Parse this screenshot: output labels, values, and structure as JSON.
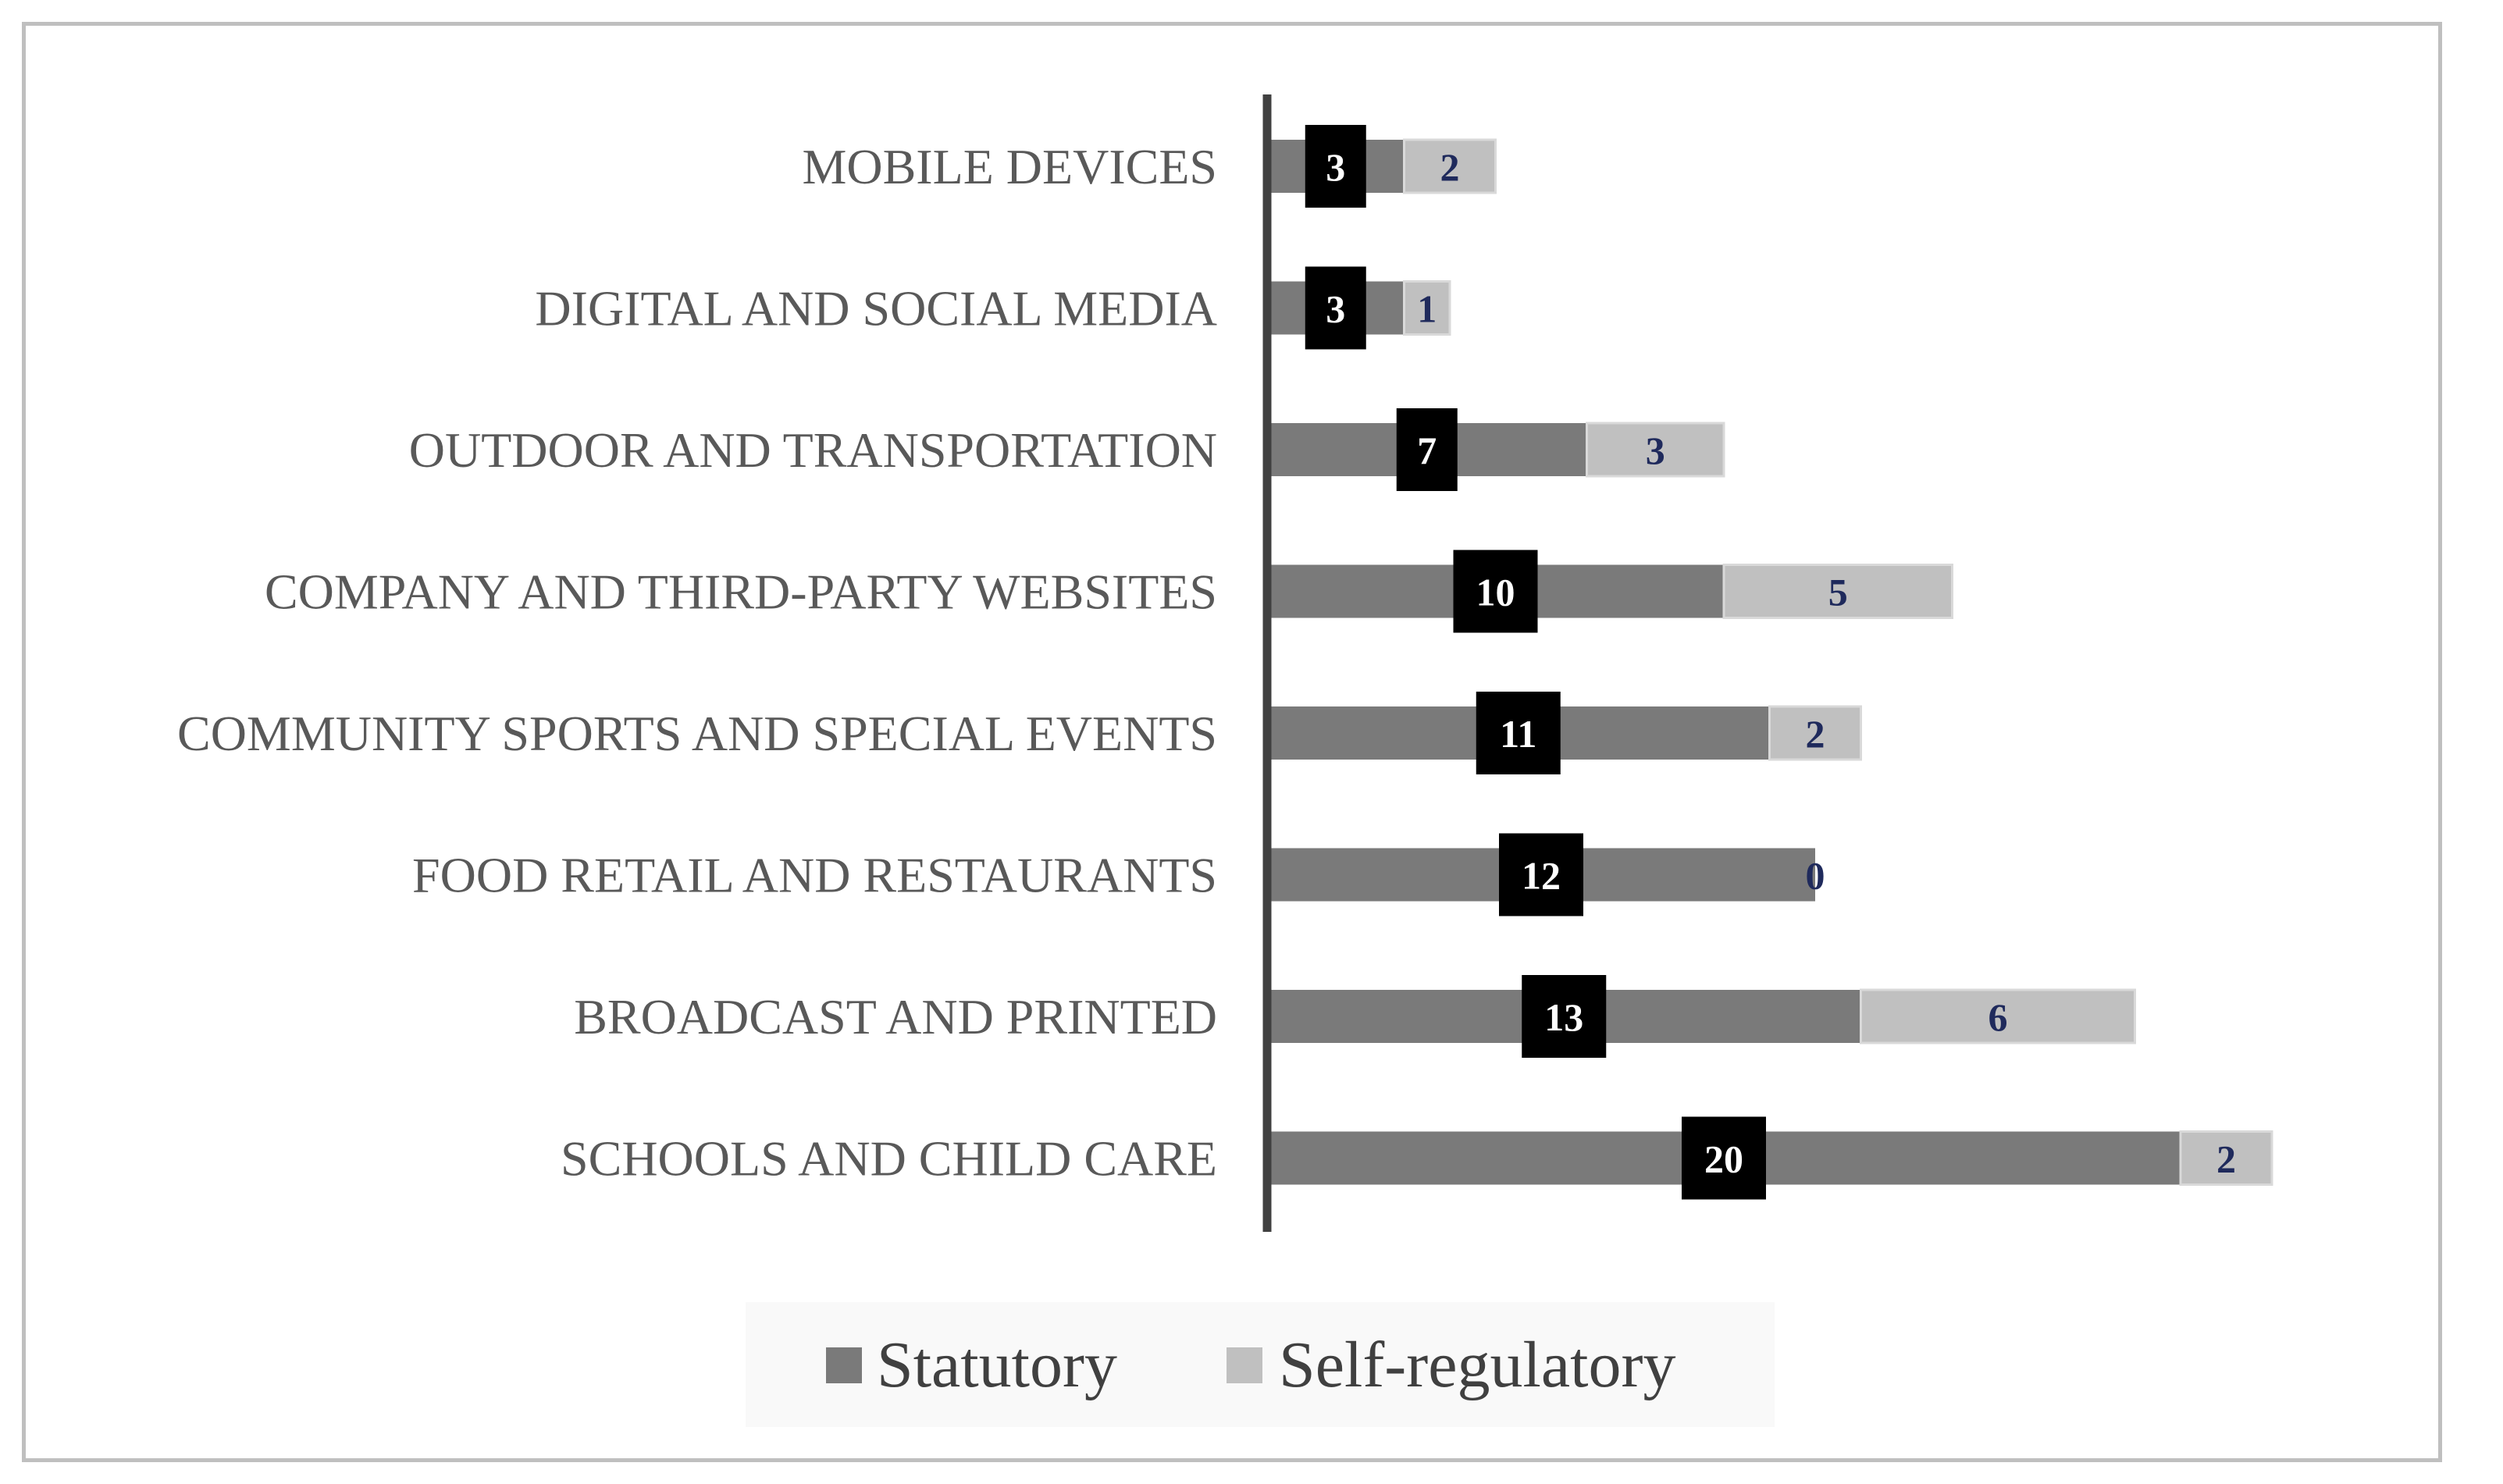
{
  "chart_data": {
    "type": "bar",
    "orientation": "horizontal",
    "stacked": true,
    "categories": [
      "MOBILE DEVICES",
      "DIGITAL AND SOCIAL MEDIA",
      "OUTDOOR AND TRANSPORTATION",
      "COMPANY AND THIRD-PARTY WEBSITES",
      "COMMUNITY SPORTS AND SPECIAL EVENTS",
      "FOOD RETAIL AND RESTAURANTS",
      "BROADCAST AND PRINTED",
      "SCHOOLS AND CHILD CARE"
    ],
    "series": [
      {
        "name": "Statutory",
        "color": "#7a7a7a",
        "label_bg": "#000000",
        "label_color": "#ffffff",
        "values": [
          3,
          3,
          7,
          10,
          11,
          12,
          13,
          20
        ]
      },
      {
        "name": "Self-regulatory",
        "color": "#c0c0c0",
        "label_color": "#1f2a5c",
        "values": [
          2,
          1,
          3,
          5,
          2,
          0,
          6,
          2
        ]
      }
    ],
    "title": "",
    "xlabel": "",
    "ylabel": "",
    "xlim": [
      0,
      22
    ],
    "grid": false,
    "legend": "bottom-center"
  }
}
